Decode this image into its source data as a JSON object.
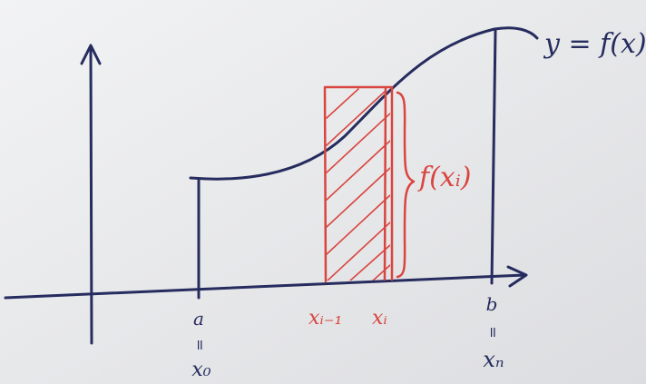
{
  "curve_label": "y = f(x)",
  "height_label": "f(xᵢ)",
  "points": [
    {
      "label": "a",
      "equals": "=",
      "alias": "x₀"
    },
    {
      "label": "b",
      "equals": "=",
      "alias": "xₙ"
    },
    {
      "label": "xᵢ₋₁"
    },
    {
      "label": "xᵢ"
    }
  ]
}
